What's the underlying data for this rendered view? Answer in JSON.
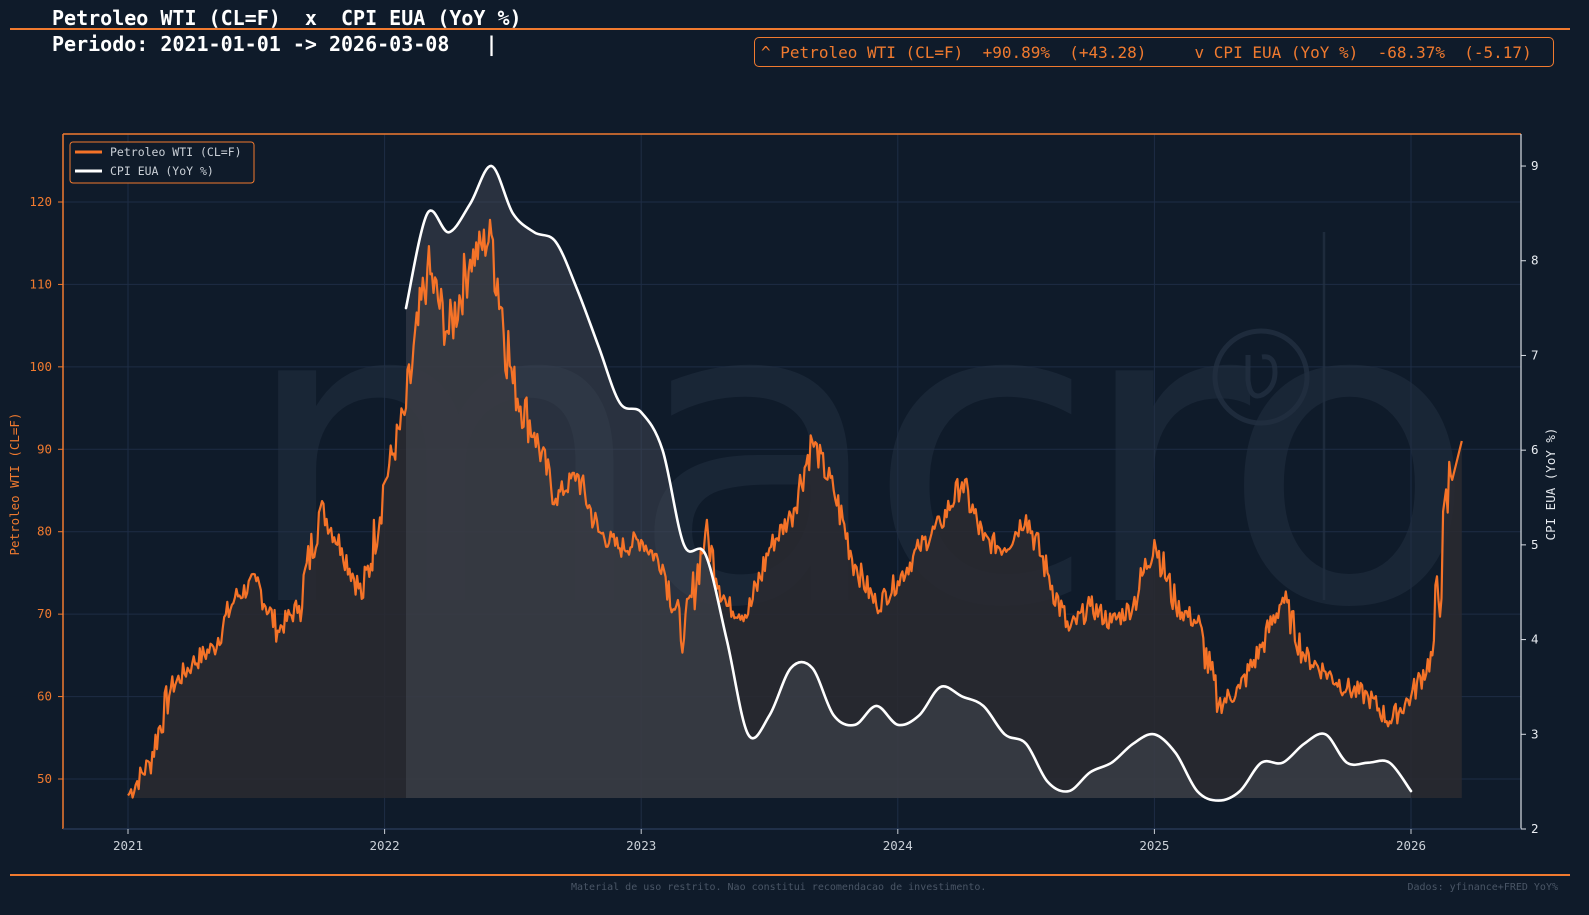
{
  "header": {
    "title": "Petroleo WTI (CL=F)  x  CPI EUA (YoY %)",
    "subtitle": "Periodo: 2021-01-01 -> 2026-03-08   |"
  },
  "performance": {
    "series1": {
      "arrow": "^",
      "name": "Petroleo WTI (CL=F)",
      "pct": "+90.89%",
      "abs": "(+43.28)"
    },
    "series2": {
      "arrow": "v",
      "name": "CPI EUA (YoY %)",
      "pct": "-68.37%",
      "abs": "(-5.17)"
    }
  },
  "footer": {
    "disclaimer": "Material de uso restrito. Nao constitui recomendacao de investimento.",
    "source": "Dados: yfinance+FRED YoY%"
  },
  "watermark": {
    "text": "macro",
    "symbol": "registered-mark"
  },
  "colors": {
    "background": "#0f1b2a",
    "accent": "#f07a2f",
    "oil_line": "#f07a2f",
    "cpi_line": "#ffffff",
    "grid": "#1e2d45"
  },
  "chart_data": {
    "type": "line",
    "title": "Petroleo WTI (CL=F)  x  CPI EUA (YoY %)",
    "subtitle": "Periodo: 2021-01-01 -> 2026-03-08",
    "xlabel": "",
    "ylabel": "Petroleo WTI (CL=F)",
    "ylabel_right": "CPI EUA (YoY %)",
    "x_ticks": [
      "2021",
      "2022",
      "2023",
      "2024",
      "2025",
      "2026"
    ],
    "y_ticks_left": [
      50,
      60,
      70,
      80,
      90,
      100,
      110,
      120
    ],
    "y_ticks_right": [
      2,
      3,
      4,
      5,
      6,
      7,
      8,
      9
    ],
    "ylim": [
      44,
      128
    ],
    "ylim_right": [
      2,
      9.4
    ],
    "grid": true,
    "legend_position": "upper left",
    "legend": [
      "Petroleo WTI (CL=F)",
      "CPI EUA (YoY %)"
    ],
    "series": [
      {
        "name": "Petroleo WTI (CL=F)",
        "axis": "left",
        "x": [
          "2021-01",
          "2021-02",
          "2021-03",
          "2021-04",
          "2021-05",
          "2021-06",
          "2021-07",
          "2021-08",
          "2021-09",
          "2021-10",
          "2021-11",
          "2021-12",
          "2022-01",
          "2022-02",
          "2022-03",
          "2022-04",
          "2022-05",
          "2022-06",
          "2022-07",
          "2022-08",
          "2022-09",
          "2022-10",
          "2022-11",
          "2022-12",
          "2023-01",
          "2023-02",
          "2023-03",
          "2023-04",
          "2023-05",
          "2023-06",
          "2023-07",
          "2023-08",
          "2023-09",
          "2023-10",
          "2023-11",
          "2023-12",
          "2024-01",
          "2024-02",
          "2024-03",
          "2024-04",
          "2024-05",
          "2024-06",
          "2024-07",
          "2024-08",
          "2024-09",
          "2024-10",
          "2024-11",
          "2024-12",
          "2025-01",
          "2025-02",
          "2025-03",
          "2025-04",
          "2025-05",
          "2025-06",
          "2025-07",
          "2025-08",
          "2025-09",
          "2025-10",
          "2025-11",
          "2025-12",
          "2026-01",
          "2026-02",
          "2026-03"
        ],
        "values": [
          48,
          52,
          61,
          64,
          66,
          72,
          74,
          68,
          71,
          83,
          78,
          72,
          86,
          95,
          112,
          104,
          113,
          116,
          98,
          92,
          84,
          87,
          80,
          78,
          79,
          76,
          67,
          80,
          71,
          70,
          78,
          82,
          91,
          85,
          76,
          71,
          74,
          78,
          81,
          86,
          79,
          78,
          82,
          75,
          68,
          71,
          69,
          71,
          79,
          71,
          69,
          59,
          61,
          66,
          72,
          65,
          63,
          61,
          60,
          57,
          60,
          65,
          91
        ]
      },
      {
        "name": "CPI EUA (YoY %)",
        "axis": "right",
        "x": [
          "2022-02",
          "2022-03",
          "2022-04",
          "2022-05",
          "2022-06",
          "2022-07",
          "2022-08",
          "2022-09",
          "2022-10",
          "2022-11",
          "2022-12",
          "2023-01",
          "2023-02",
          "2023-03",
          "2023-04",
          "2023-05",
          "2023-06",
          "2023-07",
          "2023-08",
          "2023-09",
          "2023-10",
          "2023-11",
          "2023-12",
          "2024-01",
          "2024-02",
          "2024-03",
          "2024-04",
          "2024-05",
          "2024-06",
          "2024-07",
          "2024-08",
          "2024-09",
          "2024-10",
          "2024-11",
          "2024-12",
          "2025-01",
          "2025-02",
          "2025-03",
          "2025-04",
          "2025-05",
          "2025-06",
          "2025-07",
          "2025-08",
          "2025-09",
          "2025-10",
          "2025-11",
          "2025-12",
          "2026-01"
        ],
        "values": [
          7.5,
          8.5,
          8.3,
          8.6,
          9.0,
          8.5,
          8.3,
          8.2,
          7.7,
          7.1,
          6.5,
          6.4,
          6.0,
          5.0,
          4.9,
          4.0,
          3.0,
          3.2,
          3.7,
          3.7,
          3.2,
          3.1,
          3.3,
          3.1,
          3.2,
          3.5,
          3.4,
          3.3,
          3.0,
          2.9,
          2.5,
          2.4,
          2.6,
          2.7,
          2.9,
          3.0,
          2.8,
          2.4,
          2.3,
          2.4,
          2.7,
          2.7,
          2.9,
          3.0,
          2.7,
          2.7,
          2.7,
          2.4
        ]
      }
    ]
  }
}
